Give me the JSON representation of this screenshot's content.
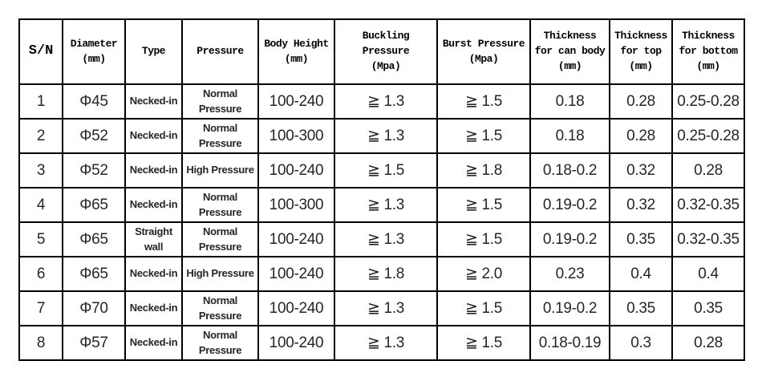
{
  "table": {
    "headers": [
      "S/N",
      "Diameter\n(mm)",
      "Type",
      "Pressure",
      "Body Height\n(mm)",
      "Buckling\nPressure\n(Mpa)",
      "Burst Pressure\n(Mpa)",
      "Thickness\nfor can body\n(mm)",
      "Thickness\nfor top\n(mm)",
      "Thickness\nfor bottom\n(mm)"
    ],
    "column_keys": [
      "sn",
      "diameter",
      "type",
      "pressure",
      "body-height",
      "buckling-pressure",
      "burst-pressure",
      "thickness-can-body",
      "thickness-top",
      "thickness-bottom"
    ],
    "rows": [
      {
        "cells": [
          "1",
          "Φ45",
          "Necked-in",
          "Normal\nPressure",
          "100-240",
          "≧ 1.3",
          "≧ 1.5",
          "0.18",
          "0.28",
          "0.25-0.28"
        ]
      },
      {
        "cells": [
          "2",
          "Φ52",
          "Necked-in",
          "Normal\nPressure",
          "100-300",
          "≧ 1.3",
          "≧ 1.5",
          "0.18",
          "0.28",
          "0.25-0.28"
        ]
      },
      {
        "cells": [
          "3",
          "Φ52",
          "Necked-in",
          "High Pressure",
          "100-240",
          "≧ 1.5",
          "≧ 1.8",
          "0.18-0.2",
          "0.32",
          "0.28"
        ]
      },
      {
        "cells": [
          "4",
          "Φ65",
          "Necked-in",
          "Normal\nPressure",
          "100-300",
          "≧ 1.3",
          "≧ 1.5",
          "0.19-0.2",
          "0.32",
          "0.32-0.35"
        ]
      },
      {
        "cells": [
          "5",
          "Φ65",
          "Straight\nwall",
          "Normal\nPressure",
          "100-240",
          "≧ 1.3",
          "≧ 1.5",
          "0.19-0.2",
          "0.35",
          "0.32-0.35"
        ]
      },
      {
        "cells": [
          "6",
          "Φ65",
          "Necked-in",
          "High Pressure",
          "100-240",
          "≧ 1.8",
          "≧ 2.0",
          "0.23",
          "0.4",
          "0.4"
        ]
      },
      {
        "cells": [
          "7",
          "Φ70",
          "Necked-in",
          "Normal\nPressure",
          "100-240",
          "≧ 1.3",
          "≧ 1.5",
          "0.19-0.2",
          "0.35",
          "0.35"
        ]
      },
      {
        "cells": [
          "8",
          "Φ57",
          "Necked-in",
          "Normal\nPressure",
          "100-240",
          "≧ 1.3",
          "≧ 1.5",
          "0.18-0.19",
          "0.3",
          "0.28"
        ]
      }
    ],
    "border_color": "#000000",
    "text_color": "#262626"
  }
}
